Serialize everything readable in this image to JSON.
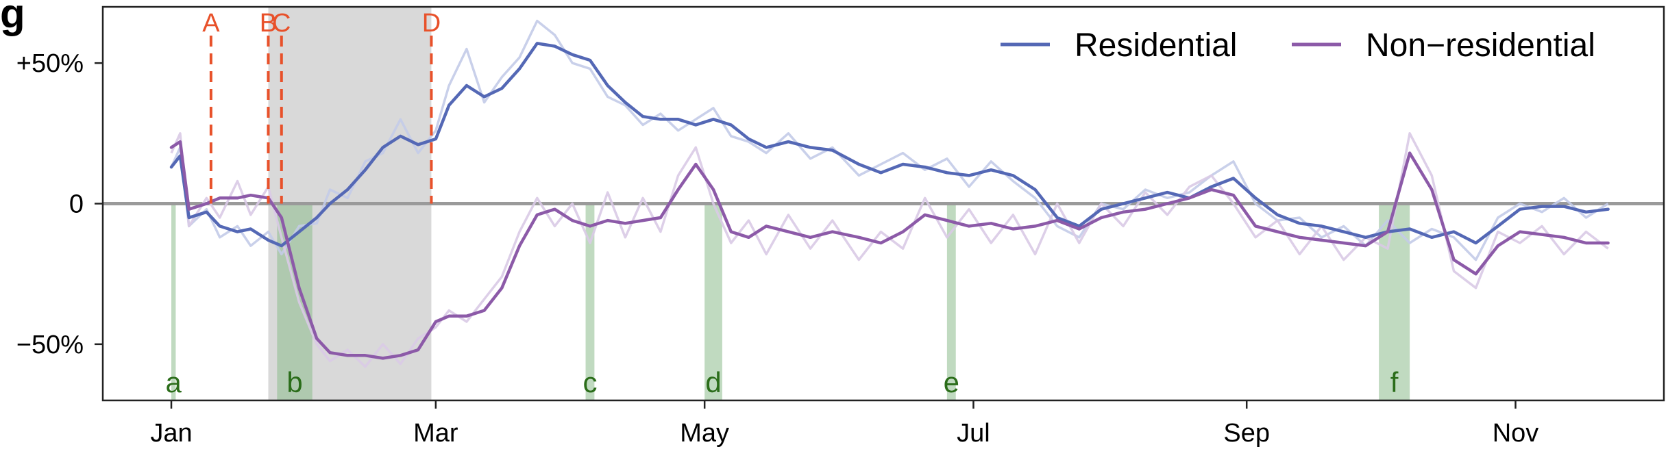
{
  "chart_data": {
    "type": "line",
    "panel_label": "g",
    "x_axis": {
      "type": "date",
      "range": [
        "2020-01-01",
        "2020-11-30"
      ],
      "tick_dates": [
        "2020-01-01",
        "2020-03-01",
        "2020-05-01",
        "2020-07-01",
        "2020-09-01",
        "2020-11-01"
      ],
      "tick_labels": [
        "Jan",
        "Mar",
        "May",
        "Jul",
        "Sep",
        "Nov"
      ]
    },
    "y_axis": {
      "range": [
        -70,
        70
      ],
      "ticks": [
        50,
        0,
        -50
      ],
      "tick_labels": [
        "+50%",
        "0",
        "−50%"
      ]
    },
    "legend": {
      "position": "top-right"
    },
    "series": [
      {
        "name": "Residential",
        "color": "#5468b5",
        "raw_color": "#c3cbe8",
        "x": [
          "2020-01-01",
          "2020-01-03",
          "2020-01-05",
          "2020-01-09",
          "2020-01-12",
          "2020-01-16",
          "2020-01-19",
          "2020-01-23",
          "2020-01-26",
          "2020-01-30",
          "2020-02-03",
          "2020-02-06",
          "2020-02-10",
          "2020-02-14",
          "2020-02-18",
          "2020-02-22",
          "2020-02-26",
          "2020-03-01",
          "2020-03-04",
          "2020-03-08",
          "2020-03-12",
          "2020-03-16",
          "2020-03-20",
          "2020-03-24",
          "2020-03-28",
          "2020-04-01",
          "2020-04-05",
          "2020-04-09",
          "2020-04-13",
          "2020-04-17",
          "2020-04-21",
          "2020-04-25",
          "2020-04-29",
          "2020-05-03",
          "2020-05-07",
          "2020-05-11",
          "2020-05-15",
          "2020-05-20",
          "2020-05-25",
          "2020-05-30",
          "2020-06-05",
          "2020-06-10",
          "2020-06-15",
          "2020-06-20",
          "2020-06-25",
          "2020-06-30",
          "2020-07-05",
          "2020-07-10",
          "2020-07-15",
          "2020-07-20",
          "2020-07-25",
          "2020-07-30",
          "2020-08-04",
          "2020-08-09",
          "2020-08-14",
          "2020-08-19",
          "2020-08-24",
          "2020-08-29",
          "2020-09-03",
          "2020-09-08",
          "2020-09-13",
          "2020-09-18",
          "2020-09-23",
          "2020-09-28",
          "2020-10-03",
          "2020-10-08",
          "2020-10-13",
          "2020-10-18",
          "2020-10-23",
          "2020-10-28",
          "2020-11-02",
          "2020-11-07",
          "2020-11-12",
          "2020-11-17",
          "2020-11-22"
        ],
        "values": [
          13,
          17,
          -5,
          -3,
          -8,
          -10,
          -9,
          -13,
          -15,
          -10,
          -5,
          0,
          5,
          12,
          20,
          24,
          21,
          23,
          35,
          42,
          38,
          41,
          48,
          57,
          56,
          53,
          51,
          42,
          36,
          31,
          30,
          30,
          28,
          30,
          28,
          23,
          20,
          22,
          20,
          19,
          14,
          11,
          14,
          13,
          11,
          10,
          12,
          10,
          5,
          -5,
          -8,
          -2,
          0,
          2,
          4,
          2,
          6,
          9,
          2,
          -4,
          -7,
          -8,
          -10,
          -12,
          -10,
          -9,
          -12,
          -10,
          -14,
          -8,
          -2,
          -1,
          -1,
          -3,
          -2
        ],
        "raw": [
          13,
          20,
          -8,
          -2,
          -12,
          -8,
          -15,
          -10,
          -18,
          -8,
          -7,
          5,
          2,
          15,
          18,
          30,
          18,
          26,
          42,
          55,
          36,
          45,
          52,
          65,
          60,
          50,
          48,
          38,
          35,
          28,
          32,
          26,
          30,
          34,
          24,
          22,
          18,
          25,
          16,
          20,
          10,
          14,
          18,
          12,
          16,
          6,
          15,
          8,
          2,
          -8,
          -12,
          0,
          -2,
          5,
          2,
          4,
          10,
          15,
          0,
          -6,
          -5,
          -12,
          -8,
          -15,
          -6,
          -14,
          -9,
          -12,
          -20,
          -5,
          0,
          -3,
          2,
          -5,
          0
        ]
      },
      {
        "name": "Non−residential",
        "color": "#8c5aa8",
        "raw_color": "#d9cae6",
        "x": [
          "2020-01-01",
          "2020-01-03",
          "2020-01-05",
          "2020-01-09",
          "2020-01-12",
          "2020-01-16",
          "2020-01-19",
          "2020-01-23",
          "2020-01-26",
          "2020-01-30",
          "2020-02-03",
          "2020-02-06",
          "2020-02-10",
          "2020-02-14",
          "2020-02-18",
          "2020-02-22",
          "2020-02-26",
          "2020-03-01",
          "2020-03-04",
          "2020-03-08",
          "2020-03-12",
          "2020-03-16",
          "2020-03-20",
          "2020-03-24",
          "2020-03-28",
          "2020-04-01",
          "2020-04-05",
          "2020-04-09",
          "2020-04-13",
          "2020-04-17",
          "2020-04-21",
          "2020-04-25",
          "2020-04-29",
          "2020-05-03",
          "2020-05-07",
          "2020-05-11",
          "2020-05-15",
          "2020-05-20",
          "2020-05-25",
          "2020-05-30",
          "2020-06-05",
          "2020-06-10",
          "2020-06-15",
          "2020-06-20",
          "2020-06-25",
          "2020-06-30",
          "2020-07-05",
          "2020-07-10",
          "2020-07-15",
          "2020-07-20",
          "2020-07-25",
          "2020-07-30",
          "2020-08-04",
          "2020-08-09",
          "2020-08-14",
          "2020-08-19",
          "2020-08-24",
          "2020-08-29",
          "2020-09-03",
          "2020-09-08",
          "2020-09-13",
          "2020-09-18",
          "2020-09-23",
          "2020-09-28",
          "2020-10-03",
          "2020-10-08",
          "2020-10-13",
          "2020-10-18",
          "2020-10-23",
          "2020-10-28",
          "2020-11-02",
          "2020-11-07",
          "2020-11-12",
          "2020-11-17",
          "2020-11-22"
        ],
        "values": [
          20,
          22,
          -2,
          0,
          2,
          2,
          3,
          2,
          -5,
          -30,
          -48,
          -53,
          -54,
          -54,
          -55,
          -54,
          -52,
          -42,
          -40,
          -40,
          -38,
          -30,
          -15,
          -4,
          -2,
          -6,
          -8,
          -6,
          -7,
          -6,
          -5,
          5,
          14,
          5,
          -10,
          -12,
          -8,
          -10,
          -12,
          -10,
          -12,
          -14,
          -10,
          -4,
          -6,
          -8,
          -7,
          -9,
          -8,
          -6,
          -9,
          -5,
          -3,
          -2,
          0,
          2,
          5,
          3,
          -8,
          -10,
          -12,
          -13,
          -14,
          -15,
          -10,
          18,
          5,
          -20,
          -25,
          -15,
          -10,
          -11,
          -12,
          -14,
          -14
        ],
        "raw": [
          18,
          25,
          -8,
          2,
          -5,
          8,
          -4,
          6,
          -12,
          -35,
          -50,
          -56,
          -52,
          -58,
          -50,
          -57,
          -48,
          -44,
          -38,
          -42,
          -34,
          -26,
          -10,
          2,
          -8,
          0,
          -14,
          4,
          -12,
          2,
          -10,
          10,
          20,
          0,
          -14,
          -6,
          -18,
          -4,
          -16,
          -6,
          -20,
          -10,
          -16,
          2,
          -12,
          -2,
          -14,
          -4,
          -18,
          0,
          -14,
          0,
          -8,
          4,
          -4,
          6,
          10,
          0,
          -12,
          -6,
          -18,
          -8,
          -20,
          -12,
          -16,
          25,
          10,
          -24,
          -30,
          -10,
          -14,
          -8,
          -18,
          -10,
          -16
        ]
      }
    ],
    "reference_line": {
      "y": 0,
      "color": "#9a9a9a"
    },
    "shaded_period": {
      "start": "2020-01-23",
      "end": "2020-02-29",
      "color": "#d9d9d9"
    },
    "event_lines": [
      {
        "label": "A",
        "date": "2020-01-10"
      },
      {
        "label": "B",
        "date": "2020-01-23"
      },
      {
        "label": "C",
        "date": "2020-01-26"
      },
      {
        "label": "D",
        "date": "2020-02-29"
      }
    ],
    "event_color": "#e8512a",
    "holidays": [
      {
        "label": "a",
        "start": "2020-01-01",
        "end": "2020-01-02"
      },
      {
        "label": "b",
        "start": "2020-01-25",
        "end": "2020-02-02"
      },
      {
        "label": "c",
        "start": "2020-04-04",
        "end": "2020-04-06"
      },
      {
        "label": "d",
        "start": "2020-05-01",
        "end": "2020-05-05"
      },
      {
        "label": "e",
        "start": "2020-06-25",
        "end": "2020-06-27"
      },
      {
        "label": "f",
        "start": "2020-10-01",
        "end": "2020-10-08"
      }
    ],
    "holiday_color": "#8dbb8d",
    "holiday_label_color": "#2b6d1a"
  }
}
